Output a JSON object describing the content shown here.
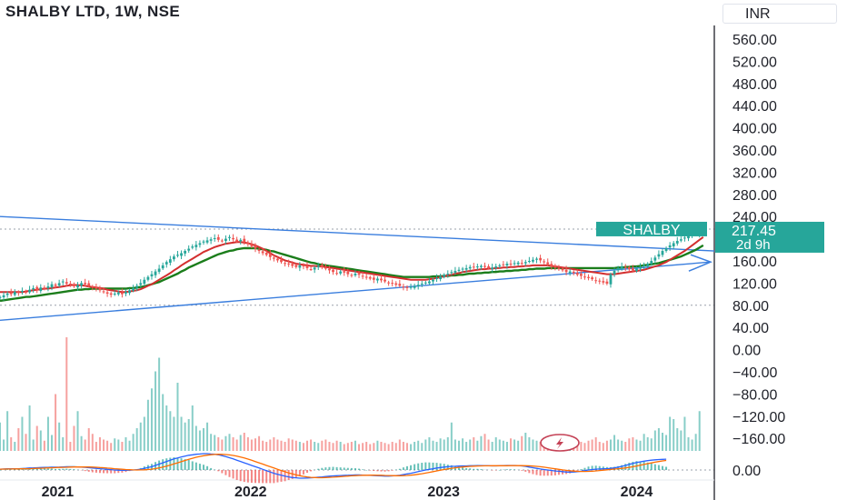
{
  "header": {
    "title": "SHALBY LTD, 1W, NSE",
    "currency": "INR"
  },
  "colors": {
    "up": "#26a69a",
    "down": "#ef5350",
    "ma_fast": "#d32f2f",
    "ma_slow": "#1b7d1b",
    "trendline": "#3a7ede",
    "macd": "#2962ff",
    "signal": "#ff6d00",
    "price_label": "#26a69a",
    "symbol_label": "#26a69a"
  },
  "price_badge": {
    "symbol": "SHALBY",
    "price": "217.45",
    "countdown": "2d 9h"
  },
  "chart_data": {
    "type": "candlestick",
    "title": "SHALBY LTD, 1W, NSE",
    "y_ticks": [
      "560.00",
      "520.00",
      "480.00",
      "440.00",
      "400.00",
      "360.00",
      "320.00",
      "280.00",
      "240.00",
      "160.00",
      "120.00",
      "80.00",
      "40.00",
      "0.00",
      "−40.00",
      "−80.00",
      "−120.00",
      "−160.00"
    ],
    "y_ticks_values": [
      560,
      520,
      480,
      440,
      400,
      360,
      320,
      280,
      240,
      160,
      120,
      80,
      40,
      0,
      -40,
      -80,
      -120,
      -160
    ],
    "x_ticks": [
      "2021",
      "2022",
      "2023",
      "2024"
    ],
    "x_ticks_values": [
      "2021-01-01",
      "2022-01-01",
      "2023-01-01",
      "2024-01-01"
    ],
    "x_range": [
      "2020-09-14",
      "2024-05-27"
    ],
    "ylim": [
      -200,
      600
    ],
    "macd_zero_label": "0.00",
    "close_series_weekly_start": "2020-09-14",
    "close": [
      95,
      98,
      101,
      100,
      104,
      103,
      106,
      104,
      108,
      111,
      107,
      112,
      110,
      114,
      118,
      115,
      120,
      123,
      119,
      117,
      114,
      116,
      120,
      118,
      115,
      113,
      110,
      107,
      104,
      101,
      99,
      101,
      103,
      100,
      104,
      107,
      111,
      115,
      120,
      126,
      131,
      136,
      141,
      146,
      152,
      158,
      163,
      168,
      171,
      174,
      178,
      182,
      186,
      189,
      192,
      195,
      197,
      199,
      201,
      198,
      196,
      200,
      203,
      199,
      195,
      198,
      194,
      190,
      186,
      182,
      178,
      174,
      171,
      167,
      164,
      161,
      158,
      156,
      154,
      151,
      149,
      152,
      150,
      147,
      145,
      148,
      151,
      149,
      146,
      143,
      140,
      138,
      141,
      139,
      136,
      134,
      137,
      135,
      132,
      130,
      128,
      126,
      128,
      125,
      123,
      121,
      119,
      117,
      115,
      113,
      111,
      113,
      115,
      117,
      119,
      121,
      123,
      126,
      129,
      132,
      135,
      137,
      140,
      142,
      144,
      146,
      147,
      149,
      148,
      150,
      151,
      149,
      147,
      148,
      150,
      152,
      153,
      155,
      154,
      156,
      157,
      155,
      158,
      160,
      162,
      164,
      161,
      158,
      154,
      150,
      148,
      146,
      143,
      140,
      141,
      138,
      135,
      133,
      131,
      129,
      127,
      125,
      123,
      121,
      119,
      136,
      142,
      147,
      150,
      148,
      145,
      143,
      146,
      149,
      152,
      155,
      160,
      166,
      172,
      178,
      183,
      188,
      192,
      196,
      199,
      202,
      205,
      208,
      210,
      212,
      217
    ],
    "ma_fast": [
      104,
      104,
      104,
      104,
      104,
      104,
      104,
      105,
      106,
      107,
      108,
      109,
      110,
      110,
      111,
      112,
      113,
      114,
      115,
      116,
      117,
      116,
      116,
      115,
      114,
      113,
      112,
      111,
      110,
      108,
      107,
      106,
      105,
      104,
      104,
      105,
      106,
      107,
      109,
      112,
      115,
      118,
      122,
      126,
      130,
      134,
      138,
      143,
      147,
      152,
      156,
      160,
      164,
      168,
      172,
      176,
      179,
      182,
      185,
      187,
      189,
      191,
      192,
      193,
      194,
      194,
      193,
      192,
      190,
      188,
      185,
      182,
      178,
      174,
      170,
      167,
      164,
      161,
      159,
      157,
      155,
      154,
      153,
      152,
      151,
      151,
      150,
      150,
      149,
      148,
      147,
      146,
      145,
      144,
      143,
      142,
      141,
      140,
      139,
      138,
      137,
      136,
      135,
      134,
      133,
      132,
      131,
      130,
      129,
      128,
      127,
      126,
      126,
      126,
      126,
      126,
      127,
      128,
      129,
      131,
      132,
      134,
      135,
      137,
      138,
      140,
      141,
      142,
      143,
      144,
      145,
      145,
      146,
      146,
      147,
      147,
      148,
      148,
      149,
      149,
      150,
      150,
      151,
      151,
      152,
      152,
      152,
      152,
      152,
      151,
      150,
      149,
      148,
      147,
      146,
      145,
      144,
      143,
      142,
      141,
      140,
      139,
      138,
      137,
      136,
      136,
      136,
      137,
      138,
      139,
      140,
      141,
      142,
      143,
      144,
      146,
      148,
      150,
      152,
      155,
      158,
      162,
      166,
      170,
      174,
      178,
      183,
      188,
      193,
      198,
      203
    ],
    "ma_slow": [
      88,
      89,
      90,
      91,
      92,
      93,
      94,
      95,
      95,
      96,
      97,
      98,
      99,
      100,
      101,
      102,
      103,
      104,
      105,
      106,
      107,
      108,
      108,
      109,
      109,
      110,
      110,
      110,
      110,
      110,
      110,
      110,
      110,
      110,
      110,
      111,
      111,
      112,
      113,
      114,
      116,
      118,
      120,
      122,
      125,
      128,
      131,
      134,
      137,
      141,
      144,
      148,
      151,
      154,
      157,
      160,
      163,
      166,
      169,
      172,
      174,
      176,
      178,
      179,
      181,
      182,
      183,
      183,
      183,
      183,
      182,
      181,
      180,
      178,
      177,
      175,
      173,
      171,
      169,
      167,
      165,
      163,
      161,
      159,
      157,
      156,
      154,
      153,
      152,
      151,
      150,
      149,
      148,
      147,
      146,
      145,
      144,
      143,
      142,
      141,
      140,
      139,
      138,
      137,
      136,
      135,
      134,
      133,
      132,
      131,
      131,
      131,
      131,
      131,
      131,
      131,
      131,
      132,
      132,
      132,
      133,
      133,
      134,
      134,
      135,
      135,
      136,
      137,
      137,
      138,
      138,
      139,
      139,
      140,
      140,
      141,
      141,
      142,
      142,
      143,
      143,
      144,
      144,
      145,
      145,
      146,
      146,
      146,
      147,
      147,
      147,
      147,
      147,
      147,
      147,
      147,
      147,
      147,
      147,
      147,
      147,
      147,
      147,
      147,
      147,
      147,
      147,
      148,
      148,
      149,
      149,
      150,
      150,
      151,
      152,
      153,
      154,
      155,
      156,
      158,
      160,
      162,
      164,
      166,
      168,
      171,
      174,
      177,
      180,
      184,
      188
    ],
    "volume_rel": [
      0.25,
      0.1,
      0.35,
      0.12,
      0.08,
      0.2,
      0.3,
      0.15,
      0.4,
      0.1,
      0.22,
      0.18,
      0.09,
      0.3,
      0.14,
      0.5,
      0.25,
      0.12,
      1.0,
      0.08,
      0.22,
      0.35,
      0.13,
      0.1,
      0.2,
      0.15,
      0.08,
      0.12,
      0.1,
      0.09,
      0.07,
      0.11,
      0.1,
      0.08,
      0.12,
      0.09,
      0.15,
      0.2,
      0.25,
      0.3,
      0.45,
      0.55,
      0.7,
      0.82,
      0.5,
      0.4,
      0.35,
      0.3,
      0.6,
      0.3,
      0.25,
      0.28,
      0.4,
      0.22,
      0.18,
      0.2,
      0.25,
      0.15,
      0.14,
      0.12,
      0.1,
      0.13,
      0.15,
      0.12,
      0.1,
      0.14,
      0.16,
      0.12,
      0.1,
      0.11,
      0.13,
      0.09,
      0.08,
      0.1,
      0.12,
      0.1,
      0.09,
      0.08,
      0.11,
      0.1,
      0.09,
      0.08,
      0.07,
      0.09,
      0.1,
      0.08,
      0.07,
      0.09,
      0.1,
      0.08,
      0.07,
      0.09,
      0.08,
      0.06,
      0.07,
      0.08,
      0.09,
      0.06,
      0.07,
      0.08,
      0.06,
      0.07,
      0.09,
      0.08,
      0.07,
      0.06,
      0.08,
      0.07,
      0.1,
      0.08,
      0.07,
      0.06,
      0.08,
      0.09,
      0.07,
      0.1,
      0.12,
      0.09,
      0.08,
      0.11,
      0.1,
      0.12,
      0.25,
      0.1,
      0.09,
      0.11,
      0.08,
      0.1,
      0.12,
      0.09,
      0.13,
      0.15,
      0.1,
      0.08,
      0.12,
      0.1,
      0.09,
      0.08,
      0.11,
      0.1,
      0.09,
      0.13,
      0.16,
      0.12,
      0.1,
      0.09,
      0.08,
      0.1,
      0.11,
      0.13,
      0.1,
      0.08,
      0.09,
      0.08,
      0.07,
      0.1,
      0.09,
      0.08,
      0.07,
      0.09,
      0.1,
      0.12,
      0.08,
      0.07,
      0.09,
      0.1,
      0.14,
      0.1,
      0.09,
      0.08,
      0.11,
      0.12,
      0.1,
      0.09,
      0.15,
      0.12,
      0.11,
      0.18,
      0.2,
      0.16,
      0.14,
      0.3,
      0.28,
      0.2,
      0.18,
      0.3,
      0.12,
      0.1,
      0.15,
      0.35
    ],
    "macd_rel": [
      0.05,
      0.06,
      0.07,
      0.07,
      0.08,
      0.08,
      0.09,
      0.1,
      0.12,
      0.13,
      0.14,
      0.15,
      0.16,
      0.16,
      0.17,
      0.17,
      0.18,
      0.19,
      0.2,
      0.2,
      0.2,
      0.19,
      0.18,
      0.16,
      0.14,
      0.12,
      0.1,
      0.08,
      0.06,
      0.04,
      0.02,
      0.0,
      -0.01,
      -0.02,
      -0.02,
      -0.01,
      0.0,
      0.02,
      0.05,
      0.1,
      0.15,
      0.2,
      0.28,
      0.36,
      0.44,
      0.52,
      0.6,
      0.68,
      0.74,
      0.8,
      0.85,
      0.9,
      0.93,
      0.96,
      0.98,
      1.0,
      1.0,
      0.98,
      0.96,
      0.93,
      0.88,
      0.82,
      0.75,
      0.68,
      0.6,
      0.52,
      0.44,
      0.36,
      0.28,
      0.2,
      0.12,
      0.04,
      -0.04,
      -0.12,
      -0.2,
      -0.26,
      -0.32,
      -0.38,
      -0.42,
      -0.46,
      -0.48,
      -0.5,
      -0.5,
      -0.49,
      -0.48,
      -0.46,
      -0.44,
      -0.42,
      -0.4,
      -0.38,
      -0.36,
      -0.35,
      -0.34,
      -0.33,
      -0.32,
      -0.31,
      -0.3,
      -0.3,
      -0.31,
      -0.32,
      -0.33,
      -0.34,
      -0.35,
      -0.36,
      -0.37,
      -0.37,
      -0.36,
      -0.34,
      -0.32,
      -0.28,
      -0.24,
      -0.2,
      -0.15,
      -0.1,
      -0.05,
      0.0,
      0.04,
      0.08,
      0.12,
      0.15,
      0.18,
      0.2,
      0.22,
      0.23,
      0.24,
      0.25,
      0.25,
      0.26,
      0.26,
      0.27,
      0.27,
      0.26,
      0.26,
      0.25,
      0.25,
      0.26,
      0.27,
      0.28,
      0.28,
      0.28,
      0.27,
      0.25,
      0.22,
      0.18,
      0.14,
      0.1,
      0.06,
      0.03,
      0.0,
      -0.03,
      -0.06,
      -0.08,
      -0.1,
      -0.12,
      -0.13,
      -0.12,
      -0.1,
      -0.07,
      -0.04,
      0.0,
      0.03,
      0.05,
      0.06,
      0.07,
      0.08,
      0.1,
      0.13,
      0.17,
      0.22,
      0.28,
      0.34,
      0.4,
      0.46,
      0.5,
      0.54,
      0.57,
      0.6,
      0.62,
      0.64,
      0.65,
      0.66
    ]
  }
}
